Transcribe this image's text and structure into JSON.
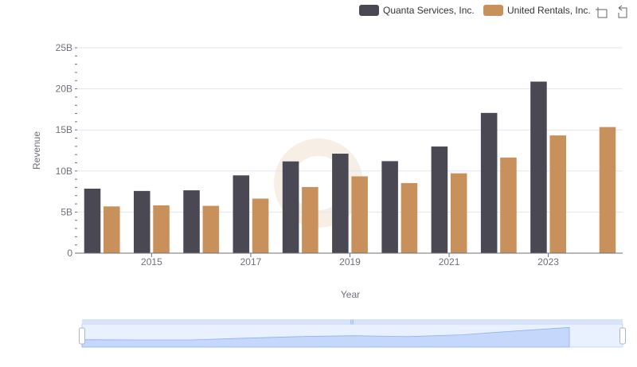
{
  "chart_data": {
    "type": "bar",
    "categories": [
      "2014",
      "2015",
      "2016",
      "2017",
      "2018",
      "2019",
      "2020",
      "2021",
      "2022",
      "2023",
      "2024"
    ],
    "x_tick_labels": [
      "2015",
      "2017",
      "2019",
      "2021",
      "2023"
    ],
    "xlabel": "Year",
    "ylabel": "Revenue",
    "ylim": [
      0,
      25000000000
    ],
    "y_ticks": [
      {
        "value": 0,
        "label": "0"
      },
      {
        "value": 5000000000,
        "label": "5B"
      },
      {
        "value": 10000000000,
        "label": "10B"
      },
      {
        "value": 15000000000,
        "label": "15B"
      },
      {
        "value": 20000000000,
        "label": "20B"
      },
      {
        "value": 25000000000,
        "label": "25B"
      }
    ],
    "grid": true,
    "legend_position": "top-right",
    "series": [
      {
        "name": "Quanta Services, Inc.",
        "color": "#4a4953",
        "values": [
          7850000000,
          7570000000,
          7650000000,
          9470000000,
          11170000000,
          12110000000,
          11200000000,
          12980000000,
          17070000000,
          20880000000,
          null
        ]
      },
      {
        "name": "United Rentals, Inc.",
        "color": "#c8915c",
        "values": [
          5690000000,
          5820000000,
          5760000000,
          6640000000,
          8050000000,
          9350000000,
          8530000000,
          9720000000,
          11640000000,
          14330000000,
          15350000000
        ]
      }
    ]
  },
  "toolbox": {
    "zoom_icon": "zoom-icon",
    "restore_icon": "restore-icon"
  },
  "data_zoom": {
    "start_percent": 0,
    "end_percent": 100,
    "fill_color": "#d4e0fb",
    "handle_color": "#ffffff"
  }
}
